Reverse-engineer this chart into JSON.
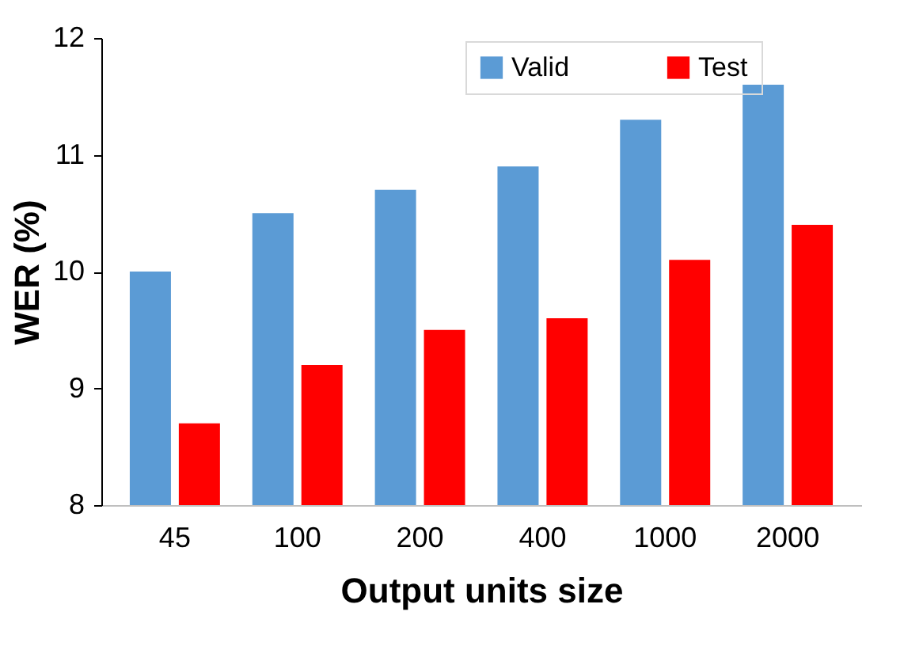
{
  "chart_data": {
    "type": "bar",
    "xlabel": "Output units size",
    "ylabel": "WER (%)",
    "categories": [
      "45",
      "100",
      "200",
      "400",
      "1000",
      "2000"
    ],
    "series": [
      {
        "name": "Valid",
        "color": "#5b9bd5",
        "values": [
          10.0,
          10.5,
          10.7,
          10.9,
          11.3,
          11.6
        ]
      },
      {
        "name": "Test",
        "color": "#ff0000",
        "values": [
          8.7,
          9.2,
          9.5,
          9.6,
          10.1,
          10.4
        ]
      }
    ],
    "ylim": [
      8,
      12
    ],
    "yticks": [
      8,
      9,
      10,
      11,
      12
    ],
    "grid": false,
    "legend": "top"
  }
}
